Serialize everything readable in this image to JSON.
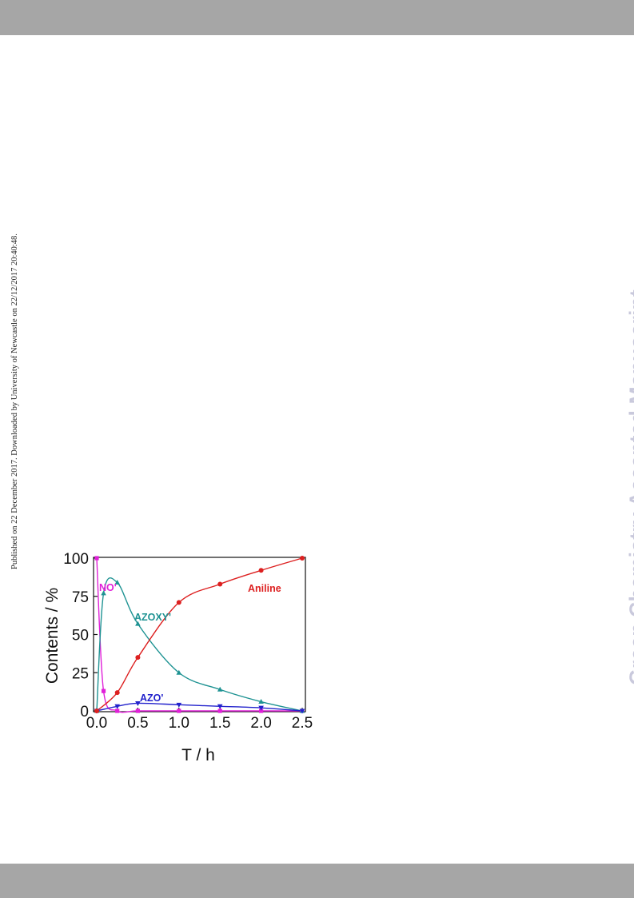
{
  "page": {
    "side_note": "Published on 22 December 2017. Downloaded by University of Newcastle on 22/12/2017 20:40:48.",
    "watermark": "Green Chemistry Accepted Manuscript"
  },
  "chart_data": {
    "type": "line",
    "title": "",
    "xlabel": "T / h",
    "ylabel": "Contents / %",
    "xlim": [
      0,
      2.5
    ],
    "ylim": [
      0,
      100
    ],
    "xticks": [
      "0.0",
      "0.5",
      "1.0",
      "1.5",
      "2.0",
      "2.5"
    ],
    "yticks": [
      "0",
      "25",
      "50",
      "75",
      "100"
    ],
    "grid": false,
    "legend": "inline labels",
    "series": [
      {
        "name": "NO'",
        "color": "#e020d8",
        "marker": "square",
        "x": [
          0,
          0.083,
          0.25,
          0.5,
          1.0,
          1.5,
          2.0,
          2.5
        ],
        "y": [
          100,
          13,
          0,
          0,
          0,
          0,
          0,
          0
        ]
      },
      {
        "name": "AZOXY'",
        "color": "#1f9393",
        "marker": "triangle-up",
        "x": [
          0,
          0.083,
          0.25,
          0.5,
          1.0,
          1.5,
          2.0,
          2.5
        ],
        "y": [
          0,
          77,
          84,
          57,
          25,
          14,
          6,
          0
        ]
      },
      {
        "name": "AZO'",
        "color": "#2222cc",
        "marker": "triangle-down",
        "x": [
          0,
          0.25,
          0.5,
          1.0,
          1.5,
          2.0,
          2.5
        ],
        "y": [
          0,
          3,
          5,
          4,
          3,
          2,
          0
        ]
      },
      {
        "name": "Aniline",
        "color": "#dd2020",
        "marker": "circle",
        "x": [
          0,
          0.25,
          0.5,
          1.0,
          1.5,
          2.0,
          2.5
        ],
        "y": [
          0,
          12,
          35,
          71,
          83,
          92,
          100
        ]
      }
    ]
  }
}
